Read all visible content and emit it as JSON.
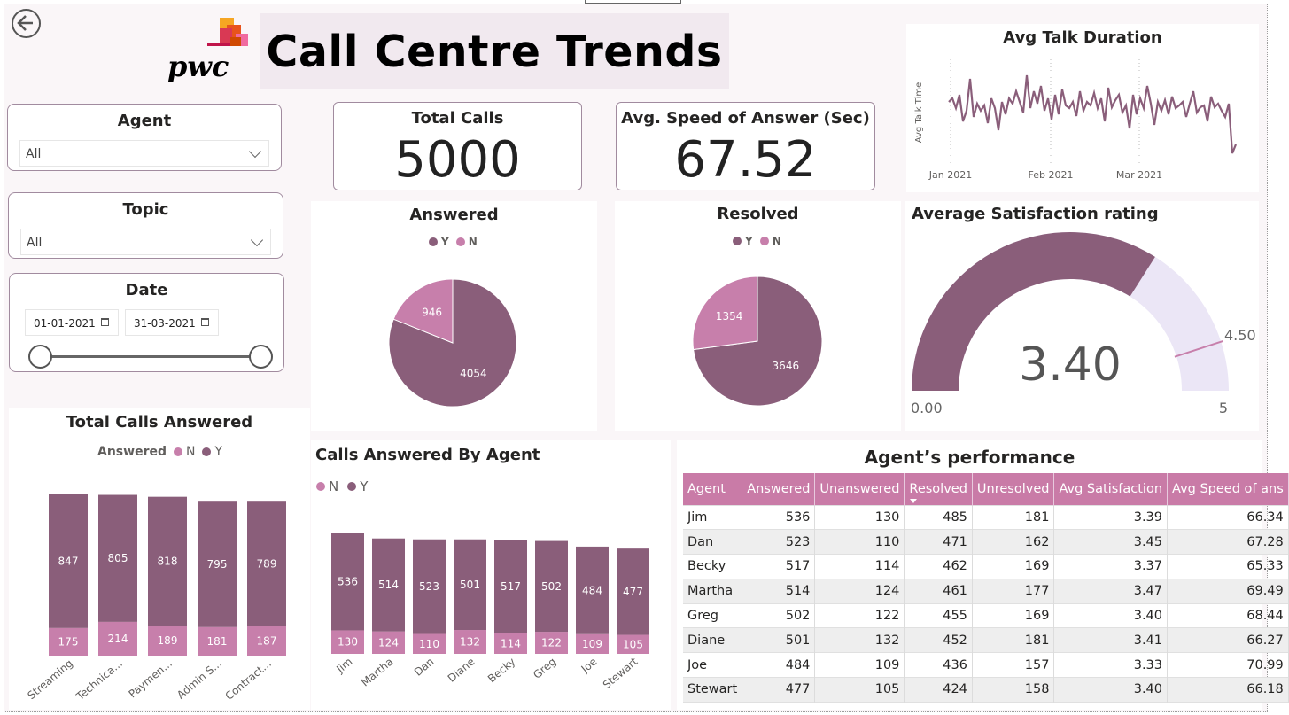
{
  "header": {
    "title": "Call Centre Trends",
    "logo_text": "pwc"
  },
  "slicers": {
    "agent": {
      "title": "Agent",
      "value": "All"
    },
    "topic": {
      "title": "Topic",
      "value": "All"
    },
    "date": {
      "title": "Date",
      "start": "01-01-2021",
      "end": "31-03-2021"
    }
  },
  "cards": {
    "total_calls": {
      "title": "Total Calls",
      "value": "5000"
    },
    "speed": {
      "title": "Avg. Speed of Answer (Sec)",
      "value": "67.52"
    }
  },
  "colors": {
    "dark": "#8a5e7a",
    "light": "#c77fab",
    "gauge_bg": "#ebe6f6",
    "header": "#c97ba7"
  },
  "chart_data": [
    {
      "id": "avg_talk",
      "type": "line",
      "title": "Avg Talk Duration",
      "ylabel": "Avg Talk Time",
      "x_ticks": [
        "Jan 2021",
        "Feb 2021",
        "Mar 2021"
      ],
      "values": [
        0.62,
        0.66,
        0.55,
        0.7,
        0.4,
        0.52,
        0.88,
        0.45,
        0.6,
        0.52,
        0.58,
        0.38,
        0.66,
        0.55,
        0.3,
        0.62,
        0.48,
        0.66,
        0.6,
        0.74,
        0.62,
        0.5,
        0.92,
        0.55,
        0.74,
        0.6,
        0.8,
        0.52,
        0.66,
        0.42,
        0.7,
        0.48,
        0.76,
        0.58,
        0.55,
        0.62,
        0.46,
        0.74,
        0.52,
        0.62,
        0.58,
        0.72,
        0.55,
        0.66,
        0.4,
        0.78,
        0.56,
        0.64,
        0.7,
        0.5,
        0.58,
        0.32,
        0.7,
        0.48,
        0.66,
        0.55,
        0.8,
        0.6,
        0.36,
        0.62,
        0.52,
        0.64,
        0.48,
        0.68,
        0.55,
        0.58,
        0.62,
        0.45,
        0.6,
        0.74,
        0.5,
        0.56,
        0.58,
        0.4,
        0.68,
        0.56,
        0.6,
        0.52,
        0.45,
        0.6,
        0.04,
        0.14
      ]
    },
    {
      "id": "answered",
      "type": "pie",
      "title": "Answered",
      "legend": [
        "Y",
        "N"
      ],
      "slices": [
        {
          "label": "Y",
          "value": 4054
        },
        {
          "label": "N",
          "value": 946
        }
      ]
    },
    {
      "id": "resolved",
      "type": "pie",
      "title": "Resolved",
      "legend": [
        "Y",
        "N"
      ],
      "slices": [
        {
          "label": "Y",
          "value": 3646
        },
        {
          "label": "N",
          "value": 1354
        }
      ]
    },
    {
      "id": "satisfaction",
      "type": "gauge",
      "title": "Average Satisfaction rating",
      "value": 3.4,
      "value_label": "3.40",
      "min_label": "0.00",
      "max_label": "5",
      "target_label": "4.50",
      "min": 0,
      "max": 5,
      "target": 4.5
    },
    {
      "id": "total_calls_answered",
      "type": "bar",
      "stacked": true,
      "title": "Total Calls Answered",
      "legend_title": "Answered",
      "legend": [
        "N",
        "Y"
      ],
      "categories": [
        "Streaming",
        "Technica...",
        "Paymen...",
        "Admin S...",
        "Contract..."
      ],
      "series": [
        {
          "name": "N",
          "values": [
            175,
            214,
            189,
            181,
            187
          ]
        },
        {
          "name": "Y",
          "values": [
            847,
            805,
            818,
            795,
            789
          ]
        }
      ]
    },
    {
      "id": "calls_by_agent",
      "type": "bar",
      "stacked": true,
      "title": "Calls Answered By Agent",
      "legend": [
        "N",
        "Y"
      ],
      "categories": [
        "Jim",
        "Martha",
        "Dan",
        "Diane",
        "Becky",
        "Greg",
        "Joe",
        "Stewart"
      ],
      "series": [
        {
          "name": "N",
          "values": [
            130,
            124,
            110,
            132,
            114,
            122,
            109,
            105
          ]
        },
        {
          "name": "Y",
          "values": [
            536,
            514,
            523,
            501,
            517,
            502,
            484,
            477
          ]
        }
      ]
    }
  ],
  "performance": {
    "title": "Agent’s performance",
    "columns": [
      "Agent",
      "Answered",
      "Unanswered",
      "Resolved",
      "Unresolved",
      "Avg Satisfaction",
      "Avg Speed of ans"
    ],
    "rows": [
      [
        "Jim",
        "536",
        "130",
        "485",
        "181",
        "3.39",
        "66.34"
      ],
      [
        "Dan",
        "523",
        "110",
        "471",
        "162",
        "3.45",
        "67.28"
      ],
      [
        "Becky",
        "517",
        "114",
        "462",
        "169",
        "3.37",
        "65.33"
      ],
      [
        "Martha",
        "514",
        "124",
        "461",
        "177",
        "3.47",
        "69.49"
      ],
      [
        "Greg",
        "502",
        "122",
        "455",
        "169",
        "3.40",
        "68.44"
      ],
      [
        "Diane",
        "501",
        "132",
        "452",
        "181",
        "3.41",
        "66.27"
      ],
      [
        "Joe",
        "484",
        "109",
        "436",
        "157",
        "3.33",
        "70.99"
      ],
      [
        "Stewart",
        "477",
        "105",
        "424",
        "158",
        "3.40",
        "66.18"
      ]
    ]
  }
}
